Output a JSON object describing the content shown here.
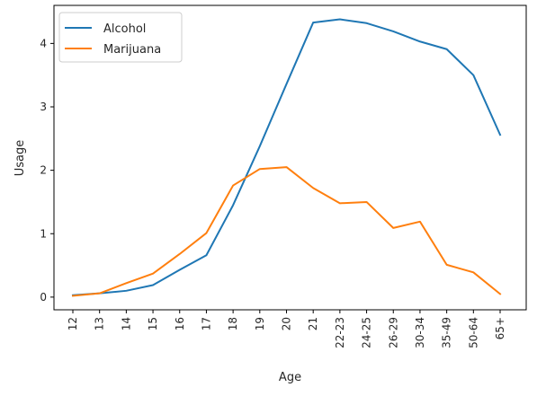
{
  "chart_data": {
    "type": "line",
    "title": "",
    "xlabel": "Age",
    "ylabel": "Usage",
    "categories": [
      "12",
      "13",
      "14",
      "15",
      "16",
      "17",
      "18",
      "19",
      "20",
      "21",
      "22-23",
      "24-25",
      "26-29",
      "30-34",
      "35-49",
      "50-64",
      "65+"
    ],
    "ylim": [
      -0.2,
      4.6
    ],
    "yticks": [
      0,
      1,
      2,
      3,
      4
    ],
    "grid": false,
    "legend_position": "top-left",
    "series": [
      {
        "name": "Alcohol",
        "color": "#1f77b4",
        "values": [
          0.03,
          0.06,
          0.1,
          0.19,
          0.43,
          0.66,
          1.45,
          2.38,
          3.36,
          4.33,
          4.38,
          4.32,
          4.19,
          4.03,
          3.91,
          3.5,
          2.56
        ]
      },
      {
        "name": "Marijuana",
        "color": "#ff7f0e",
        "values": [
          0.02,
          0.06,
          0.22,
          0.37,
          0.68,
          1.01,
          1.76,
          2.02,
          2.05,
          1.72,
          1.48,
          1.5,
          1.09,
          1.19,
          0.51,
          0.39,
          0.05
        ]
      }
    ]
  }
}
